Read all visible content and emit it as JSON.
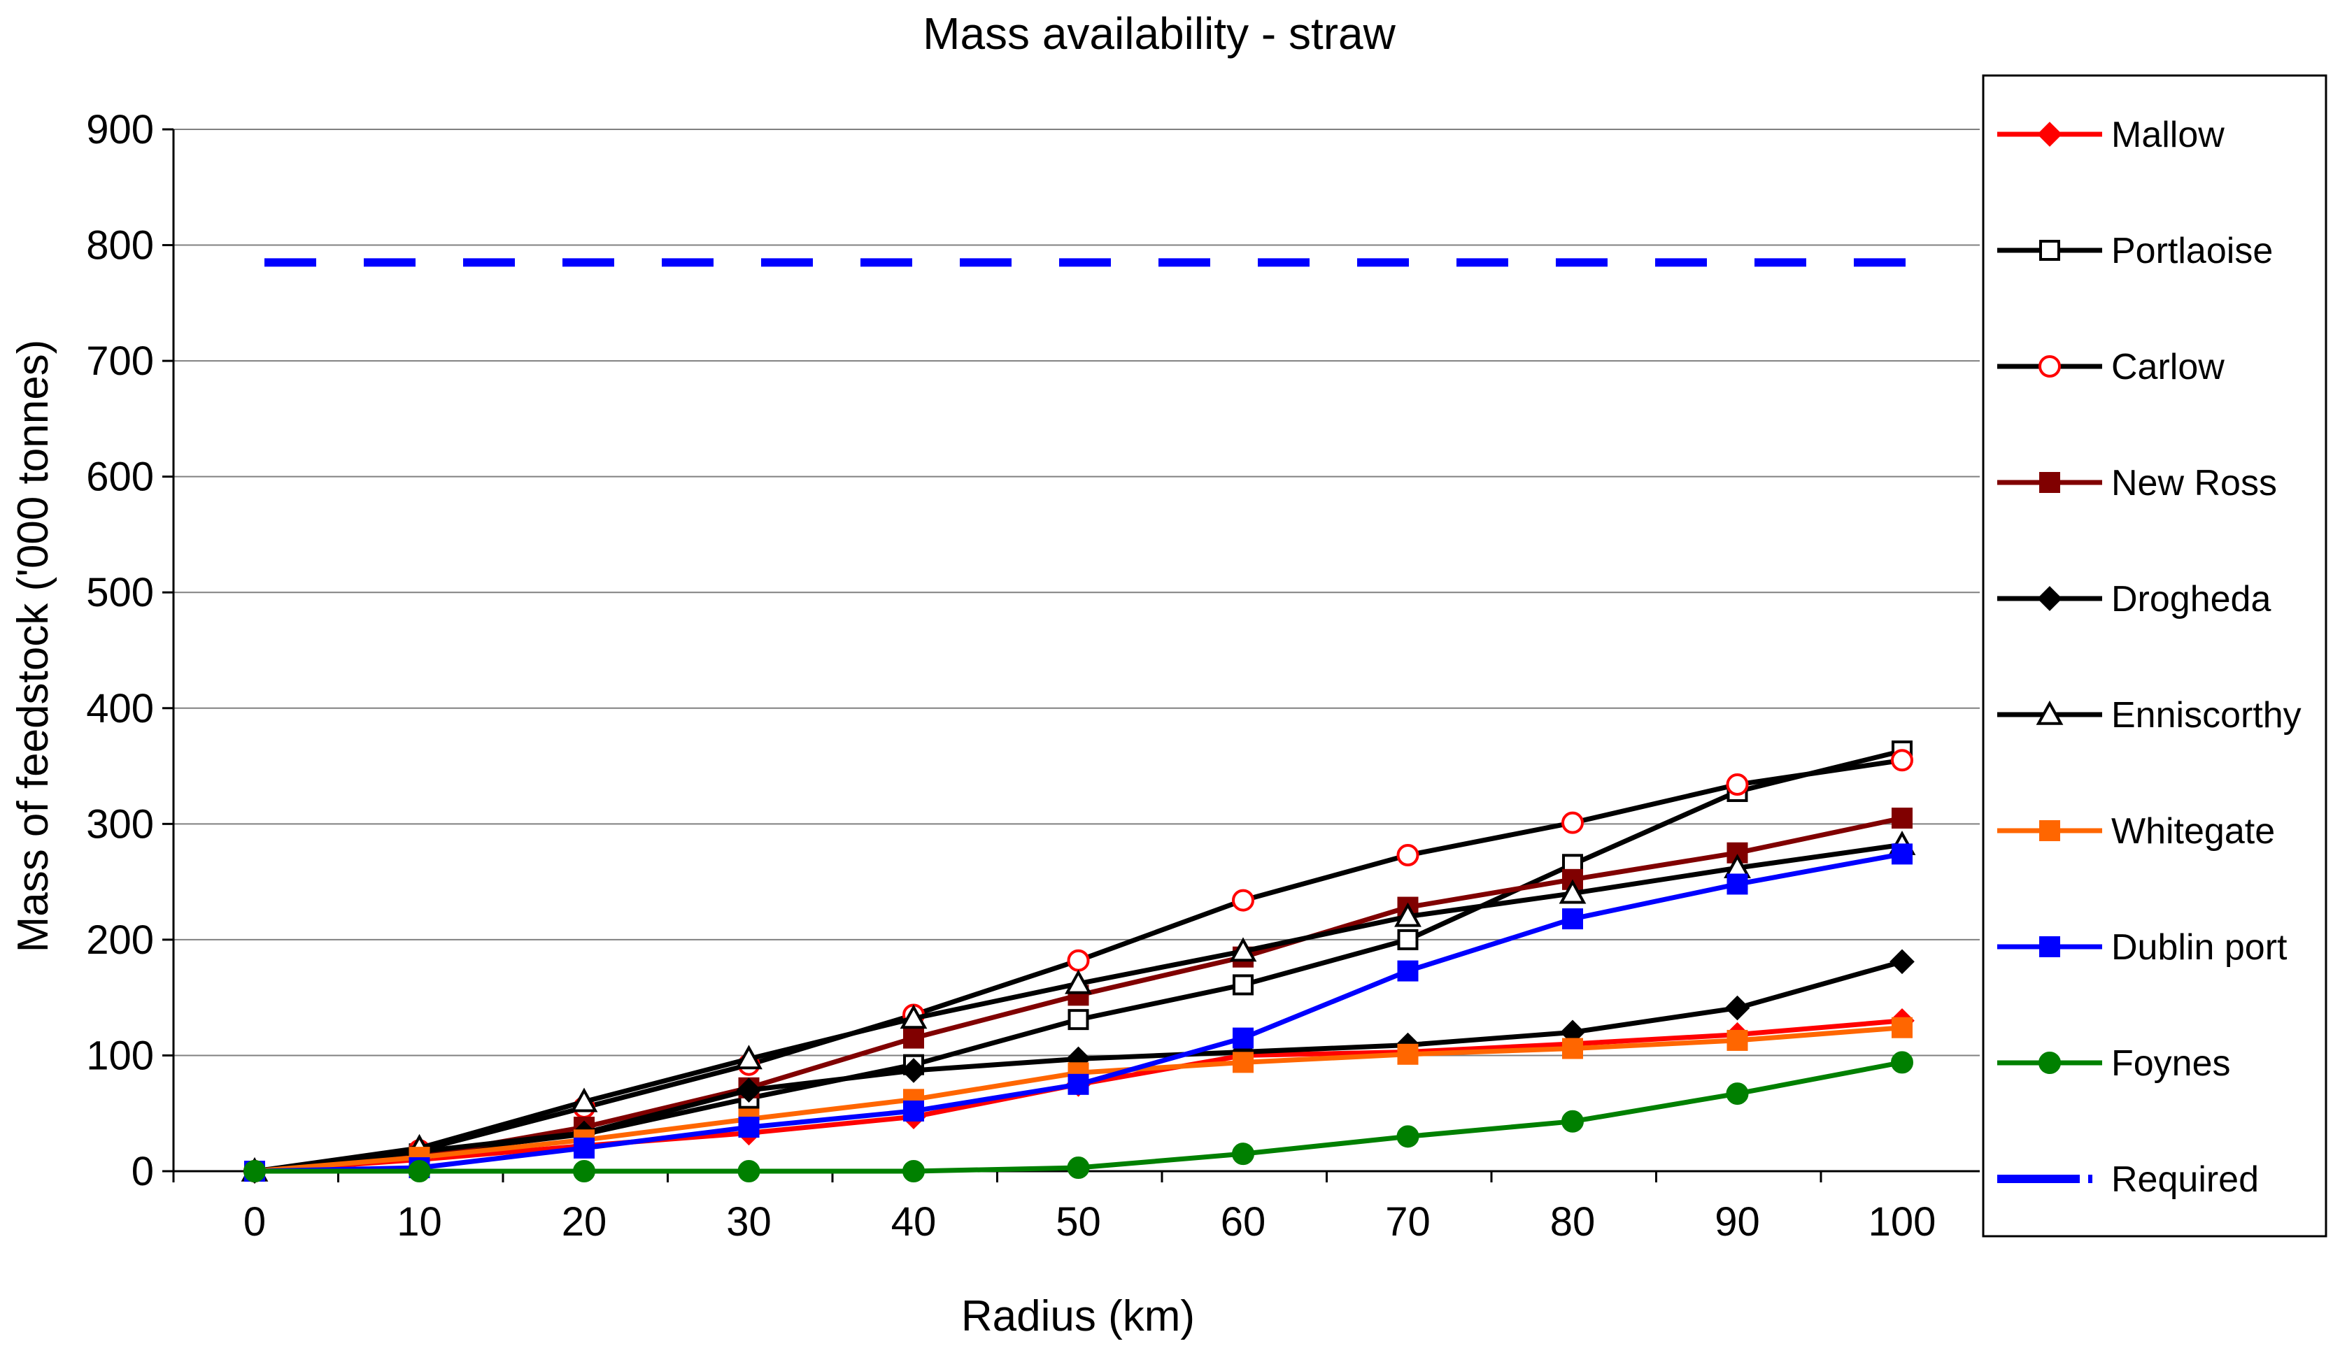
{
  "chart_data": {
    "type": "line",
    "title": "Mass availability - straw",
    "xlabel": "Radius (km)",
    "ylabel": "Mass of feedstock ('000 tonnes)",
    "x": [
      0,
      10,
      20,
      30,
      40,
      50,
      60,
      70,
      80,
      90,
      100
    ],
    "x_ticks": [
      "0",
      "10",
      "20",
      "30",
      "40",
      "50",
      "60",
      "70",
      "80",
      "90",
      "100"
    ],
    "ylim": [
      0,
      900
    ],
    "y_ticks": [
      "0",
      "100",
      "200",
      "300",
      "400",
      "500",
      "600",
      "700",
      "800",
      "900"
    ],
    "y_tick_values": [
      0,
      100,
      200,
      300,
      400,
      500,
      600,
      700,
      800,
      900
    ],
    "grid": "horizontal",
    "legend_position": "right",
    "series": [
      {
        "name": "Mallow",
        "values": [
          0,
          10,
          22,
          33,
          47,
          75,
          100,
          103,
          110,
          118,
          130
        ],
        "color": "#ff0000",
        "marker": "diamond",
        "marker_fill": "#ff0000",
        "marker_stroke": "#ff0000"
      },
      {
        "name": "Portlaoise",
        "values": [
          0,
          15,
          32,
          63,
          92,
          131,
          161,
          200,
          265,
          328,
          363
        ],
        "color": "#000000",
        "marker": "square",
        "marker_fill": "#ffffff",
        "marker_stroke": "#000000"
      },
      {
        "name": "Carlow",
        "values": [
          0,
          18,
          55,
          92,
          135,
          182,
          234,
          273,
          301,
          334,
          355
        ],
        "color": "#000000",
        "marker": "circle",
        "marker_fill": "#ffffff",
        "marker_stroke": "#ff0000"
      },
      {
        "name": "New Ross",
        "values": [
          0,
          13,
          38,
          72,
          115,
          152,
          185,
          228,
          252,
          275,
          305
        ],
        "color": "#800000",
        "marker": "square",
        "marker_fill": "#800000",
        "marker_stroke": "#800000"
      },
      {
        "name": "Drogheda",
        "values": [
          0,
          17,
          33,
          70,
          87,
          97,
          103,
          109,
          120,
          141,
          181
        ],
        "color": "#000000",
        "marker": "diamond",
        "marker_fill": "#000000",
        "marker_stroke": "#000000"
      },
      {
        "name": "Enniscorthy",
        "values": [
          0,
          20,
          60,
          97,
          132,
          162,
          190,
          220,
          240,
          262,
          282
        ],
        "color": "#000000",
        "marker": "triangle",
        "marker_fill": "#ffffff",
        "marker_stroke": "#000000"
      },
      {
        "name": "Whitegate",
        "values": [
          0,
          12,
          27,
          45,
          62,
          85,
          94,
          101,
          106,
          113,
          124
        ],
        "color": "#ff6600",
        "marker": "square",
        "marker_fill": "#ff6600",
        "marker_stroke": "#ff6600"
      },
      {
        "name": "Dublin port",
        "values": [
          0,
          3,
          20,
          38,
          52,
          75,
          115,
          173,
          218,
          248,
          274
        ],
        "color": "#0000ff",
        "marker": "square",
        "marker_fill": "#0000ff",
        "marker_stroke": "#0000ff"
      },
      {
        "name": "Foynes",
        "values": [
          0,
          0,
          0,
          0,
          0,
          3,
          15,
          30,
          43,
          67,
          94
        ],
        "color": "#008000",
        "marker": "circle",
        "marker_fill": "#008000",
        "marker_stroke": "#008000"
      },
      {
        "name": "Required",
        "values": [
          785,
          785,
          785,
          785,
          785,
          785,
          785,
          785,
          785,
          785,
          785
        ],
        "color": "#0000ff",
        "marker": "none",
        "dashed": true
      }
    ]
  }
}
